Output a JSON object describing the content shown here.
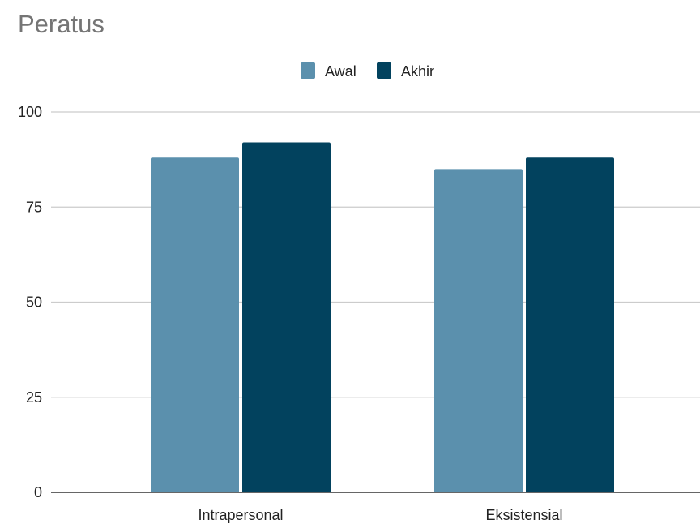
{
  "chart_data": {
    "type": "bar",
    "title": "Peratus",
    "xlabel": "",
    "ylabel": "",
    "categories": [
      "Intrapersonal",
      "Eksistensial"
    ],
    "series": [
      {
        "name": "Awal",
        "color": "#5b90ad",
        "values": [
          88,
          85
        ]
      },
      {
        "name": "Akhir",
        "color": "#02425e",
        "values": [
          92,
          88
        ]
      }
    ],
    "ylim": [
      0,
      100
    ],
    "yticks": [
      0,
      25,
      50,
      75,
      100
    ],
    "grid": true,
    "legend_position": "top-center"
  }
}
